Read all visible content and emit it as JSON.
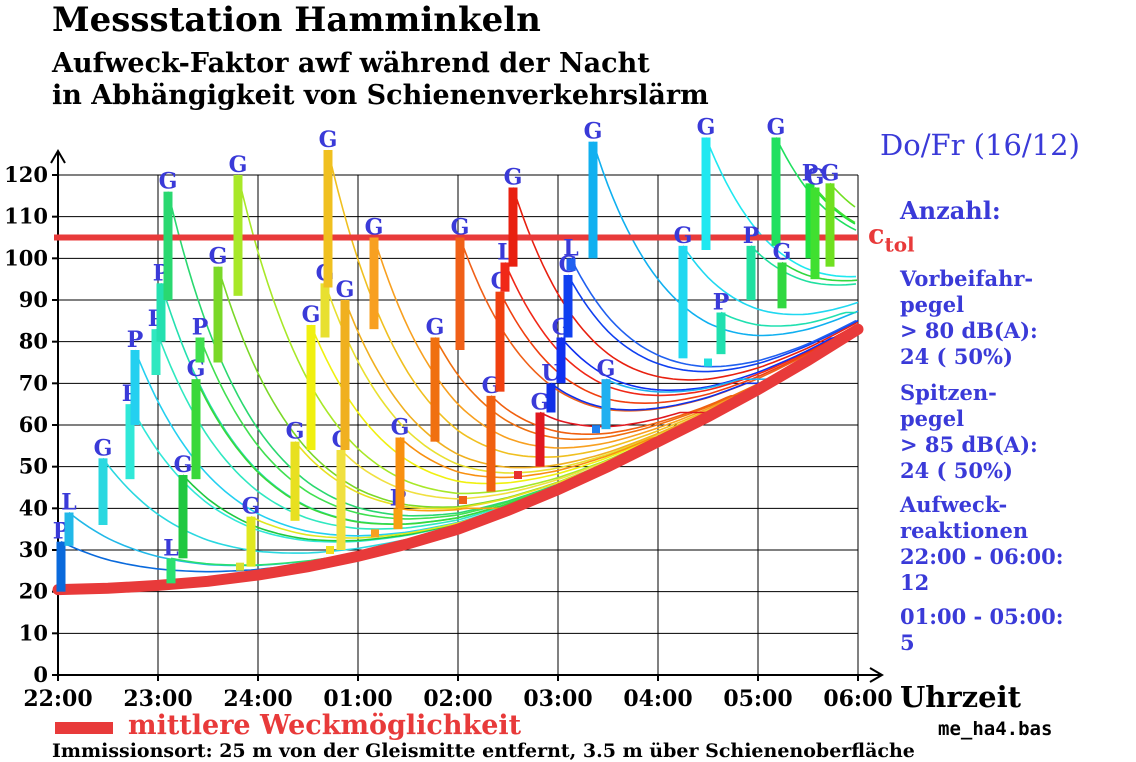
{
  "title": "Messstation Hamminkeln",
  "subtitle_line1": "Aufweck-Faktor awf  während der Nacht",
  "subtitle_line2": " in Abhängigkeit von Schienenverkehrslärm",
  "period": "Do/Fr (16/12)",
  "side": {
    "count_label": "Anzahl:",
    "pass_label1": "Vorbeifahr-",
    "pass_label2": "pegel",
    "pass_label3": "> 80 dB(A):",
    "pass_value": "24   ( 50%)",
    "peak_label1": "Spitzen-",
    "peak_label2": "pegel",
    "peak_label3": "> 85 dB(A):",
    "peak_value": "24   ( 50%)",
    "wake_label1": "Aufweck-",
    "wake_label2": "reaktionen",
    "wake_label3": "22:00 - 06:00:",
    "wake_value1": "12",
    "wake_label4": "01:00 - 05:00:",
    "wake_value2": "5"
  },
  "legend_label": "mittlere Weckmöglichkeit",
  "file_name": "me_ha4.bas",
  "footer": "Immissionsort: 25 m von der Gleismitte entfernt, 3.5 m über Schienenoberfläche",
  "colors": {
    "baseline": "#e83a3a",
    "tolerance": "#e83a3a",
    "text_blue": "#3a3ad8"
  },
  "chart_data": {
    "type": "line",
    "xlabel": "Uhrzeit",
    "ylabel": "",
    "x_unit": "hours after 22:00",
    "xlim": [
      0,
      8
    ],
    "ylim": [
      0,
      120
    ],
    "x_ticks": [
      "22:00",
      "23:00",
      "24:00",
      "01:00",
      "02:00",
      "03:00",
      "04:00",
      "05:00",
      "06:00"
    ],
    "y_ticks": [
      0,
      10,
      20,
      30,
      40,
      50,
      60,
      70,
      80,
      90,
      100,
      110,
      120
    ],
    "grid": true,
    "tolerance": {
      "label": "c",
      "label_sub": "tol",
      "value": 105
    },
    "baseline": {
      "name": "mittlere Weckmöglichkeit",
      "x": [
        0,
        0.5,
        1,
        1.5,
        2,
        2.5,
        3,
        3.5,
        4,
        4.5,
        5,
        5.5,
        6,
        6.5,
        7,
        7.5,
        8
      ],
      "y": [
        20.5,
        20.8,
        21.5,
        22.5,
        24,
        26,
        28.5,
        31.5,
        35,
        39.5,
        44.5,
        50,
        56,
        62,
        68.5,
        75.5,
        83
      ]
    },
    "events": [
      {
        "t": 0.03,
        "bottom": 20,
        "top": 32,
        "label": "P",
        "color": "#0a6adc"
      },
      {
        "t": 0.11,
        "bottom": 31,
        "top": 39,
        "label": "L",
        "color": "#22b8e8"
      },
      {
        "t": 0.45,
        "bottom": 36,
        "top": 52,
        "label": "G",
        "color": "#2ad8e0"
      },
      {
        "t": 0.72,
        "bottom": 47,
        "top": 65,
        "label": "P",
        "color": "#30e8d8"
      },
      {
        "t": 0.77,
        "bottom": 60,
        "top": 78,
        "label": "P",
        "color": "#24d0f0"
      },
      {
        "t": 0.98,
        "bottom": 72,
        "top": 83,
        "label": "P",
        "color": "#30e8c0"
      },
      {
        "t": 1.03,
        "bottom": 80,
        "top": 94,
        "label": "P",
        "color": "#24e0b0"
      },
      {
        "t": 1.1,
        "bottom": 90,
        "top": 116,
        "label": "G",
        "color": "#2ad870"
      },
      {
        "t": 1.13,
        "bottom": 22,
        "top": 28,
        "label": "L",
        "color": "#2ae070"
      },
      {
        "t": 1.25,
        "bottom": 28,
        "top": 48,
        "label": "G",
        "color": "#20c840"
      },
      {
        "t": 1.38,
        "bottom": 47,
        "top": 71,
        "label": "G",
        "color": "#3ad83a"
      },
      {
        "t": 1.42,
        "bottom": 75,
        "top": 81,
        "label": "P",
        "color": "#40e050"
      },
      {
        "t": 1.6,
        "bottom": 75,
        "top": 98,
        "label": "G",
        "color": "#7ad828"
      },
      {
        "t": 1.82,
        "bottom": 26,
        "top": 26,
        "label": "",
        "color": "#d8e030"
      },
      {
        "t": 1.8,
        "bottom": 91,
        "top": 120,
        "label": "G",
        "color": "#a8e828"
      },
      {
        "t": 1.93,
        "bottom": 26,
        "top": 38,
        "label": "G",
        "color": "#e0e820"
      },
      {
        "t": 2.37,
        "bottom": 37,
        "top": 56,
        "label": "G",
        "color": "#e8e020"
      },
      {
        "t": 2.53,
        "bottom": 54,
        "top": 84,
        "label": "G",
        "color": "#f0f010"
      },
      {
        "t": 2.67,
        "bottom": 81,
        "top": 94,
        "label": "G",
        "color": "#e8e030"
      },
      {
        "t": 2.7,
        "bottom": 93,
        "top": 126,
        "label": "G",
        "color": "#f0c020"
      },
      {
        "t": 2.72,
        "bottom": 30,
        "top": 30,
        "label": "",
        "color": "#f0e020"
      },
      {
        "t": 2.83,
        "bottom": 30,
        "top": 54,
        "label": "G",
        "color": "#f0e040"
      },
      {
        "t": 2.87,
        "bottom": 54,
        "top": 90,
        "label": "G",
        "color": "#f0b020"
      },
      {
        "t": 3.17,
        "bottom": 34,
        "top": 34,
        "label": "",
        "color": "#f8a020"
      },
      {
        "t": 3.16,
        "bottom": 83,
        "top": 105,
        "label": "G",
        "color": "#f8a020"
      },
      {
        "t": 3.4,
        "bottom": 35,
        "top": 40,
        "label": "P",
        "color": "#f8a010"
      },
      {
        "t": 3.42,
        "bottom": 40,
        "top": 57,
        "label": "G",
        "color": "#f89010"
      },
      {
        "t": 3.77,
        "bottom": 56,
        "top": 81,
        "label": "G",
        "color": "#f07010"
      },
      {
        "t": 4.05,
        "bottom": 42,
        "top": 42,
        "label": "",
        "color": "#f06018"
      },
      {
        "t": 4.02,
        "bottom": 78,
        "top": 105,
        "label": "G",
        "color": "#f06018"
      },
      {
        "t": 4.33,
        "bottom": 44,
        "top": 67,
        "label": "G",
        "color": "#f06010"
      },
      {
        "t": 4.42,
        "bottom": 68,
        "top": 92,
        "label": "G",
        "color": "#f04010"
      },
      {
        "t": 4.47,
        "bottom": 92,
        "top": 99,
        "label": "L",
        "color": "#f02818"
      },
      {
        "t": 4.55,
        "bottom": 98,
        "top": 117,
        "label": "G",
        "color": "#e82010"
      },
      {
        "t": 4.6,
        "bottom": 48,
        "top": 48,
        "label": "",
        "color": "#e83030"
      },
      {
        "t": 4.82,
        "bottom": 50,
        "top": 63,
        "label": "G",
        "color": "#e01820"
      },
      {
        "t": 4.93,
        "bottom": 63,
        "top": 70,
        "label": "U",
        "color": "#1030e8"
      },
      {
        "t": 5.03,
        "bottom": 70,
        "top": 81,
        "label": "G",
        "color": "#1030f0"
      },
      {
        "t": 5.1,
        "bottom": 81,
        "top": 96,
        "label": "G",
        "color": "#1040f0"
      },
      {
        "t": 5.13,
        "bottom": 97,
        "top": 100,
        "label": "L",
        "color": "#2060f0"
      },
      {
        "t": 5.38,
        "bottom": 59,
        "top": 59,
        "label": "",
        "color": "#2080f0"
      },
      {
        "t": 5.48,
        "bottom": 59,
        "top": 71,
        "label": "G",
        "color": "#20b0f0"
      },
      {
        "t": 5.35,
        "bottom": 100,
        "top": 128,
        "label": "G",
        "color": "#10b0f0"
      },
      {
        "t": 6.25,
        "bottom": 76,
        "top": 103,
        "label": "G",
        "color": "#20d8f0"
      },
      {
        "t": 6.48,
        "bottom": 102,
        "top": 129,
        "label": "G",
        "color": "#20e8f0"
      },
      {
        "t": 6.5,
        "bottom": 75,
        "top": 75,
        "label": "",
        "color": "#20e0e0"
      },
      {
        "t": 6.63,
        "bottom": 77,
        "top": 87,
        "label": "P",
        "color": "#20e0b0"
      },
      {
        "t": 6.93,
        "bottom": 90,
        "top": 103,
        "label": "P",
        "color": "#20e0a0"
      },
      {
        "t": 7.18,
        "bottom": 103,
        "top": 129,
        "label": "G",
        "color": "#20e060"
      },
      {
        "t": 7.24,
        "bottom": 88,
        "top": 99,
        "label": "G",
        "color": "#30d840"
      },
      {
        "t": 7.52,
        "bottom": 100,
        "top": 118,
        "label": "P",
        "color": "#20e040"
      },
      {
        "t": 7.57,
        "bottom": 95,
        "top": 117,
        "label": "G",
        "color": "#40e030"
      },
      {
        "t": 7.72,
        "bottom": 98,
        "top": 118,
        "label": "G",
        "color": "#70e020"
      }
    ]
  }
}
